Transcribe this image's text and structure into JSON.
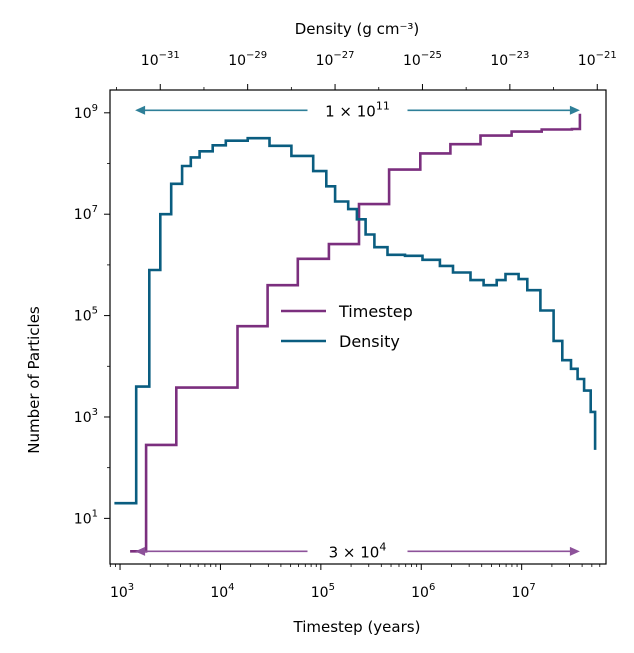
{
  "chart_data": {
    "type": "line",
    "xlabel": "Timestep (years)",
    "x2label": "Density (g cm⁻³)",
    "ylabel": "Number of Particles",
    "xscale": "log",
    "yscale": "log",
    "xlim_log10": [
      2.9,
      7.84
    ],
    "ylim_log10": [
      0.1,
      9.45
    ],
    "x_ticks_log10": [
      3,
      4,
      5,
      6,
      7
    ],
    "x_ticks_labels": [
      "10",
      "10",
      "10",
      "10",
      "10"
    ],
    "x_ticks_sup": [
      "3",
      "4",
      "5",
      "6",
      "7"
    ],
    "y_ticks_log10": [
      1,
      3,
      5,
      7,
      9
    ],
    "y_ticks_labels": [
      "10",
      "10",
      "10",
      "10",
      "10"
    ],
    "y_ticks_sup": [
      "1",
      "3",
      "5",
      "7",
      "9"
    ],
    "top_ticks_log10": [
      -31,
      -29,
      -27,
      -25,
      -23,
      -21
    ],
    "top_ticks_labels": [
      "10",
      "10",
      "10",
      "10",
      "10",
      "10"
    ],
    "top_ticks_sup": [
      "−31",
      "−29",
      "−27",
      "−25",
      "−23",
      "−21"
    ],
    "top_range_log10": [
      -32.15,
      -20.8
    ],
    "legend": {
      "position": "center",
      "entries": [
        "Timestep",
        "Density"
      ]
    },
    "annotations": {
      "top_arrow": {
        "text": "1 × 10",
        "sup": "11",
        "y_log10": 9.05,
        "x_from_log10": 3.15,
        "x_to_log10": 7.58
      },
      "bottom_arrow": {
        "text": "3 × 10",
        "sup": "4",
        "y_log10": 0.35,
        "x_from_log10": 3.15,
        "x_to_log10": 7.58
      }
    },
    "colors": {
      "timestep": "#7b2f7e",
      "density": "#0a5d80",
      "top_arrow": "#2e7f98",
      "bottom_arrow": "#8d529a"
    },
    "series": [
      {
        "name": "Timestep",
        "axis": "bottom",
        "x_log10": [
          3.1,
          3.26,
          3.26,
          3.56,
          3.56,
          3.86,
          3.86,
          4.17,
          4.17,
          4.47,
          4.47,
          4.77,
          4.77,
          5.08,
          5.08,
          5.38,
          5.38,
          5.68,
          5.68,
          5.99,
          5.99,
          6.29,
          6.29,
          6.59,
          6.59,
          6.9,
          6.9,
          7.2,
          7.2,
          7.5,
          7.5,
          7.58
        ],
        "y_log10": [
          0.35,
          0.35,
          2.45,
          2.45,
          3.58,
          3.58,
          3.58,
          4.79,
          4.79,
          5.6,
          5.6,
          6.12,
          6.12,
          6.41,
          6.41,
          7.2,
          7.2,
          7.88,
          7.88,
          8.2,
          8.2,
          8.38,
          8.38,
          8.55,
          8.55,
          8.63,
          8.63,
          8.67,
          8.67,
          8.68,
          8.68,
          8.98
        ]
      },
      {
        "name": "Density",
        "axis": "top",
        "x_log10": [
          -32.05,
          -31.55,
          -31.25,
          -31.0,
          -30.75,
          -30.5,
          -30.3,
          -30.1,
          -29.8,
          -29.5,
          -29.0,
          -28.5,
          -28.0,
          -27.5,
          -27.2,
          -27.0,
          -26.7,
          -26.5,
          -26.3,
          -26.1,
          -25.8,
          -25.4,
          -25.0,
          -24.6,
          -24.3,
          -23.9,
          -23.6,
          -23.3,
          -23.1,
          -22.8,
          -22.6,
          -22.3,
          -22.0,
          -21.8,
          -21.6,
          -21.45,
          -21.3,
          -21.15,
          -21.05
        ],
        "y_log10": [
          1.3,
          3.6,
          5.9,
          7.0,
          7.6,
          7.95,
          8.12,
          8.24,
          8.36,
          8.45,
          8.5,
          8.35,
          8.15,
          7.85,
          7.55,
          7.25,
          7.1,
          6.9,
          6.6,
          6.35,
          6.2,
          6.18,
          6.1,
          5.98,
          5.85,
          5.7,
          5.6,
          5.7,
          5.82,
          5.72,
          5.5,
          5.1,
          4.5,
          4.12,
          3.95,
          3.75,
          3.52,
          3.1,
          2.35
        ]
      }
    ]
  }
}
